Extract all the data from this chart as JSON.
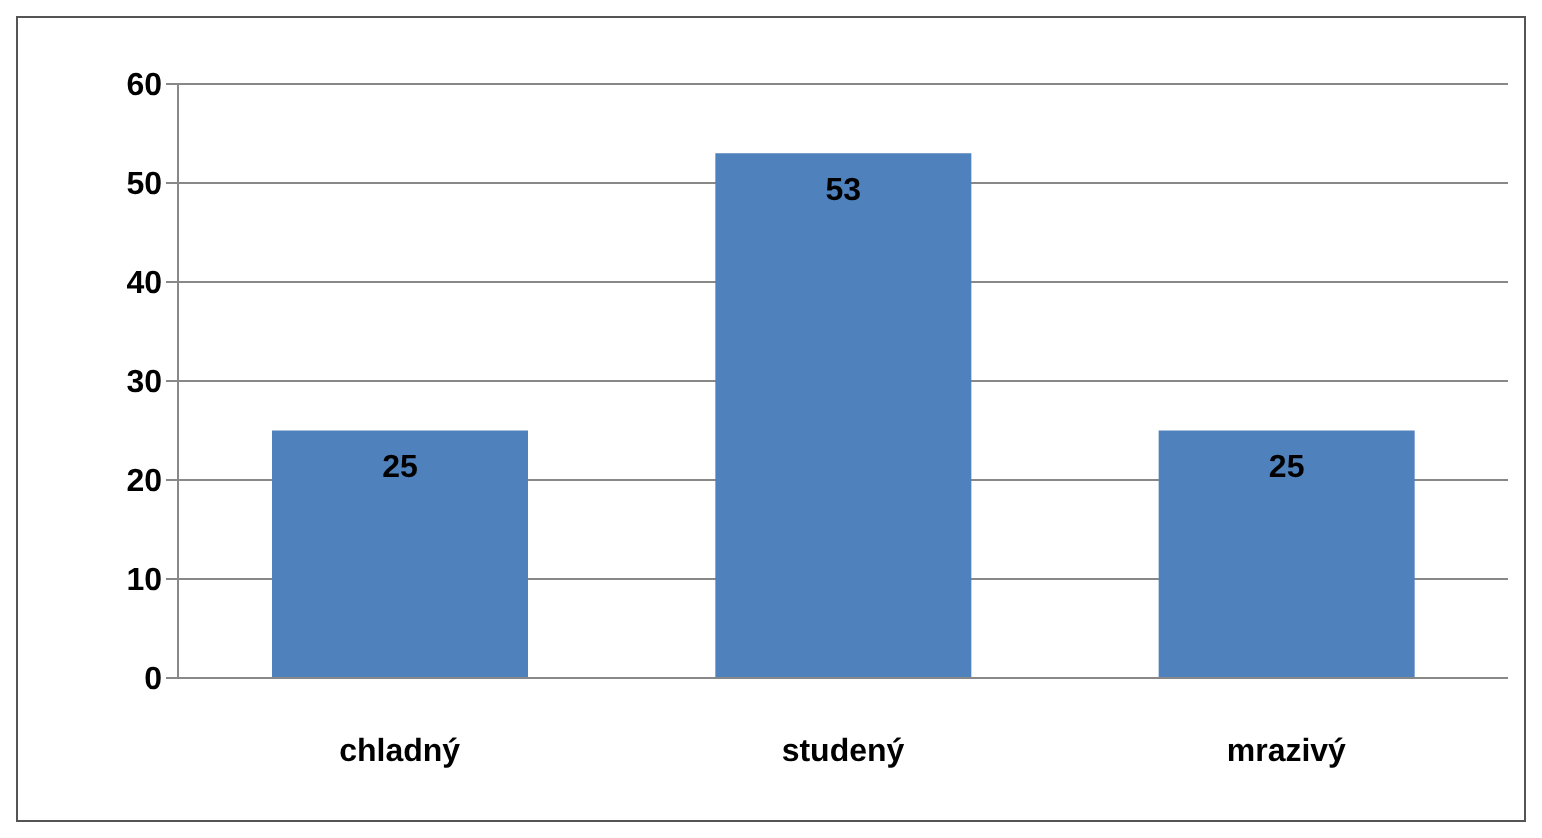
{
  "chart_data": {
    "type": "bar",
    "categories": [
      "chladný",
      "studený",
      "mrazivý"
    ],
    "values": [
      25,
      53,
      25
    ],
    "color": "#4f81bd",
    "ylim": [
      0,
      60
    ],
    "yticks": [
      0,
      10,
      20,
      30,
      40,
      50,
      60
    ],
    "grid": "y",
    "data_labels": true
  }
}
